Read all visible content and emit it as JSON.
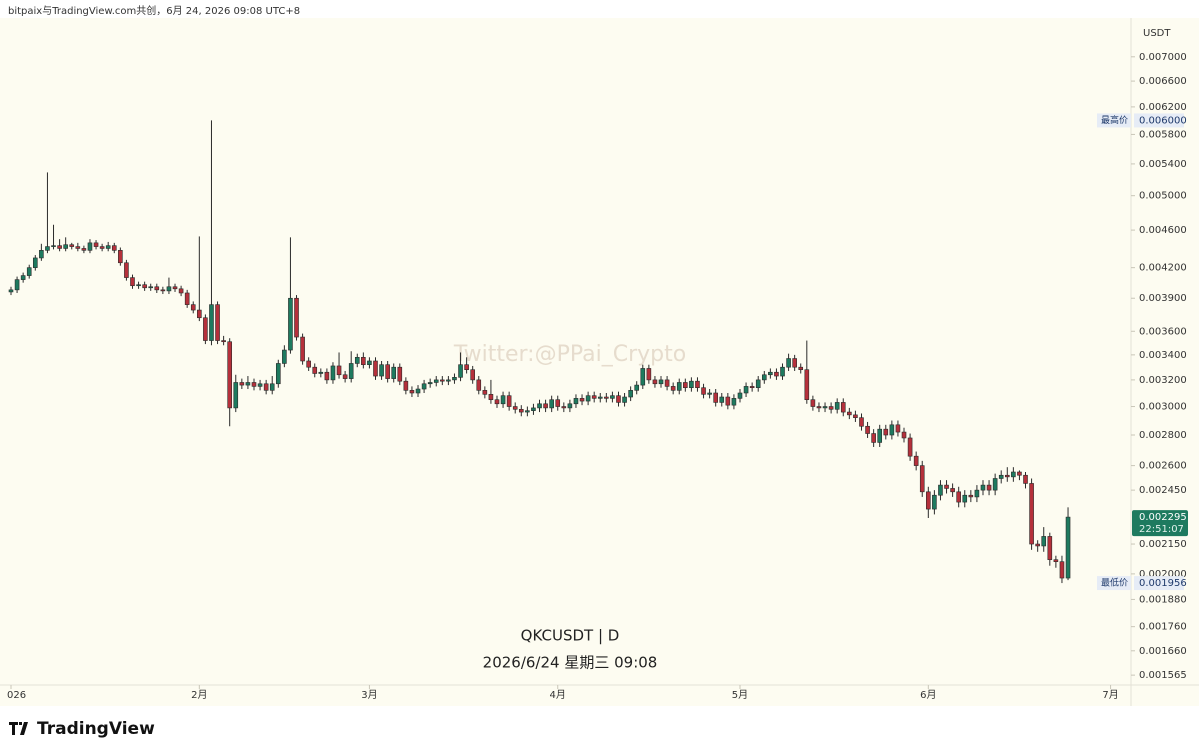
{
  "header": "bitpaix与TradingView.com共创，6月 24, 2026 09:08 UTC+8",
  "logo": "TradingView",
  "chart_data": {
    "type": "candlestick",
    "currency": "USDT",
    "symbol_label": "QKCUSDT | D",
    "date_label": "2026/6/24 星期三 09:08",
    "watermark": "Twitter:@PPai_Crypto",
    "log_scale": true,
    "grid": false,
    "up_color": "#1e7a5f",
    "down_color": "#b5303b",
    "ylim": [
      0.001528,
      0.00769
    ],
    "yticks": [
      {
        "value": 0.007,
        "label": "0.007000"
      },
      {
        "value": 0.0066,
        "label": "0.006600"
      },
      {
        "value": 0.0062,
        "label": "0.006200"
      },
      {
        "value": 0.0058,
        "label": "0.005800"
      },
      {
        "value": 0.0054,
        "label": "0.005400"
      },
      {
        "value": 0.005,
        "label": "0.005000"
      },
      {
        "value": 0.0046,
        "label": "0.004600"
      },
      {
        "value": 0.0042,
        "label": "0.004200"
      },
      {
        "value": 0.0039,
        "label": "0.003900"
      },
      {
        "value": 0.0036,
        "label": "0.003600"
      },
      {
        "value": 0.0034,
        "label": "0.003400"
      },
      {
        "value": 0.0032,
        "label": "0.003200"
      },
      {
        "value": 0.003,
        "label": "0.003000"
      },
      {
        "value": 0.0028,
        "label": "0.002800"
      },
      {
        "value": 0.0026,
        "label": "0.002600"
      },
      {
        "value": 0.00245,
        "label": "0.002450"
      },
      {
        "value": 0.00215,
        "label": "0.002150"
      },
      {
        "value": 0.002,
        "label": "0.002000"
      },
      {
        "value": 0.00188,
        "label": "0.001880"
      },
      {
        "value": 0.00176,
        "label": "0.001760"
      },
      {
        "value": 0.00166,
        "label": "0.001660"
      },
      {
        "value": 0.001565,
        "label": "0.001565"
      }
    ],
    "xlim": [
      -1.81,
      184.2
    ],
    "xticks": [
      {
        "value": 0,
        "label": "026"
      },
      {
        "value": 31,
        "label": "2月"
      },
      {
        "value": 59,
        "label": "3月"
      },
      {
        "value": 90,
        "label": "4月"
      },
      {
        "value": 120,
        "label": "5月"
      },
      {
        "value": 151,
        "label": "6月"
      },
      {
        "value": 181,
        "label": "7月"
      }
    ],
    "high_marker": {
      "label": "最高价",
      "value": 0.006,
      "value_label": "0.006000"
    },
    "low_marker": {
      "label": "最低价",
      "value": 0.001956,
      "value_label": "0.001956"
    },
    "last_price": {
      "value": 0.002295,
      "label": "0.002295",
      "countdown": "22:51:07"
    },
    "open": [
      0.00396,
      0.00398,
      0.00408,
      0.00412,
      0.0042,
      0.0043,
      0.00438,
      0.00442,
      0.00443,
      0.0044,
      0.00444,
      0.00442,
      0.0044,
      0.00438,
      0.00446,
      0.00442,
      0.0044,
      0.00443,
      0.00438,
      0.00425,
      0.0041,
      0.00402,
      0.00403,
      0.004,
      0.00401,
      0.00398,
      0.00397,
      0.00401,
      0.00399,
      0.00395,
      0.00384,
      0.00379,
      0.00372,
      0.00352,
      0.00384,
      0.00352,
      0.00351,
      0.00299,
      0.00318,
      0.00316,
      0.00318,
      0.00315,
      0.00317,
      0.00312,
      0.00317,
      0.00333,
      0.00344,
      0.0039,
      0.00355,
      0.00335,
      0.0033,
      0.00325,
      0.00326,
      0.0032,
      0.00331,
      0.00324,
      0.00321,
      0.00333,
      0.00338,
      0.00332,
      0.00335,
      0.00323,
      0.00332,
      0.00321,
      0.0033,
      0.00319,
      0.00312,
      0.0031,
      0.00313,
      0.00317,
      0.00318,
      0.0032,
      0.00319,
      0.0032,
      0.00322,
      0.00332,
      0.00328,
      0.0032,
      0.00312,
      0.00309,
      0.00305,
      0.00302,
      0.00308,
      0.003,
      0.00298,
      0.00296,
      0.00297,
      0.00299,
      0.00302,
      0.00299,
      0.00305,
      0.003,
      0.00299,
      0.00302,
      0.00306,
      0.00304,
      0.00308,
      0.00306,
      0.00307,
      0.00306,
      0.00308,
      0.00303,
      0.00307,
      0.00312,
      0.00316,
      0.00329,
      0.0032,
      0.00317,
      0.0032,
      0.00315,
      0.00312,
      0.00318,
      0.00314,
      0.00319,
      0.00314,
      0.00309,
      0.0031,
      0.00303,
      0.00307,
      0.00301,
      0.00306,
      0.0031,
      0.00315,
      0.00314,
      0.0032,
      0.00324,
      0.00326,
      0.00323,
      0.0033,
      0.00337,
      0.0033,
      0.00328,
      0.00305,
      0.003,
      0.00299,
      0.003,
      0.00298,
      0.00303,
      0.00296,
      0.00294,
      0.00292,
      0.00286,
      0.00281,
      0.00275,
      0.00284,
      0.0028,
      0.00287,
      0.00282,
      0.00278,
      0.00266,
      0.0026,
      0.00244,
      0.00234,
      0.00242,
      0.00248,
      0.00246,
      0.00244,
      0.00238,
      0.00242,
      0.00241,
      0.00245,
      0.00248,
      0.00245,
      0.00252,
      0.00254,
      0.00253,
      0.00256,
      0.00254,
      0.00249,
      0.00215,
      0.00214,
      0.00219,
      0.00207,
      0.00206,
      0.00198
    ],
    "high": [
      0.00401,
      0.00411,
      0.00415,
      0.00423,
      0.00433,
      0.00445,
      0.00529,
      0.00466,
      0.0045,
      0.00452,
      0.00446,
      0.00446,
      0.00443,
      0.0045,
      0.00449,
      0.00445,
      0.00447,
      0.00446,
      0.00441,
      0.00428,
      0.00413,
      0.00406,
      0.00406,
      0.00404,
      0.00404,
      0.00401,
      0.0041,
      0.00404,
      0.00402,
      0.00398,
      0.00387,
      0.00453,
      0.00375,
      0.006,
      0.00387,
      0.00356,
      0.00354,
      0.00324,
      0.00321,
      0.00323,
      0.00321,
      0.0032,
      0.0032,
      0.00323,
      0.00336,
      0.00348,
      0.00452,
      0.00393,
      0.00358,
      0.00338,
      0.00333,
      0.00329,
      0.00329,
      0.00334,
      0.00342,
      0.00327,
      0.00343,
      0.00341,
      0.00342,
      0.00338,
      0.00338,
      0.00335,
      0.00335,
      0.00333,
      0.00333,
      0.00322,
      0.00315,
      0.00316,
      0.0032,
      0.00321,
      0.00323,
      0.00323,
      0.00323,
      0.00325,
      0.00342,
      0.00338,
      0.00331,
      0.00323,
      0.00315,
      0.0032,
      0.00308,
      0.00311,
      0.00311,
      0.00303,
      0.00301,
      0.003,
      0.00302,
      0.00305,
      0.00305,
      0.00308,
      0.00308,
      0.00303,
      0.00305,
      0.00309,
      0.00309,
      0.00311,
      0.00311,
      0.0031,
      0.0031,
      0.00311,
      0.00311,
      0.0031,
      0.00315,
      0.00319,
      0.00332,
      0.00332,
      0.00323,
      0.00323,
      0.00323,
      0.00318,
      0.00321,
      0.00321,
      0.00322,
      0.00322,
      0.00317,
      0.00313,
      0.00313,
      0.0031,
      0.0031,
      0.00309,
      0.00313,
      0.00318,
      0.00318,
      0.00323,
      0.00327,
      0.00329,
      0.00329,
      0.00333,
      0.00341,
      0.0034,
      0.00333,
      0.00352,
      0.00308,
      0.00303,
      0.00303,
      0.00303,
      0.00306,
      0.00306,
      0.00299,
      0.00297,
      0.00295,
      0.00289,
      0.00284,
      0.00287,
      0.00287,
      0.0029,
      0.0029,
      0.00285,
      0.00281,
      0.00269,
      0.00263,
      0.00247,
      0.00245,
      0.00251,
      0.00251,
      0.00249,
      0.00247,
      0.00245,
      0.00245,
      0.00248,
      0.00251,
      0.00251,
      0.00255,
      0.00257,
      0.00259,
      0.00259,
      0.00257,
      0.00256,
      0.00252,
      0.00217,
      0.00224,
      0.00221,
      0.00209,
      0.00209,
      0.00235
    ],
    "low": [
      0.00393,
      0.00395,
      0.00405,
      0.00409,
      0.00417,
      0.00427,
      0.00435,
      0.00439,
      0.00437,
      0.00437,
      0.00439,
      0.00437,
      0.00435,
      0.00435,
      0.00439,
      0.00437,
      0.00437,
      0.00435,
      0.00422,
      0.00407,
      0.00399,
      0.00399,
      0.00397,
      0.00397,
      0.00395,
      0.00394,
      0.00394,
      0.00396,
      0.00392,
      0.00381,
      0.00376,
      0.00369,
      0.00349,
      0.00348,
      0.00349,
      0.00348,
      0.00286,
      0.00296,
      0.00313,
      0.00313,
      0.00312,
      0.00312,
      0.00309,
      0.00309,
      0.00314,
      0.0033,
      0.00341,
      0.00352,
      0.00332,
      0.00327,
      0.00322,
      0.00322,
      0.00317,
      0.00317,
      0.00321,
      0.00318,
      0.00318,
      0.0033,
      0.00329,
      0.00329,
      0.0032,
      0.0032,
      0.00318,
      0.00318,
      0.00316,
      0.00309,
      0.00307,
      0.00307,
      0.0031,
      0.00314,
      0.00315,
      0.00316,
      0.00316,
      0.00317,
      0.00319,
      0.00325,
      0.00317,
      0.00309,
      0.00306,
      0.00302,
      0.00299,
      0.00299,
      0.00297,
      0.00295,
      0.00293,
      0.00293,
      0.00294,
      0.00296,
      0.00296,
      0.00296,
      0.00297,
      0.00296,
      0.00296,
      0.00299,
      0.00301,
      0.00301,
      0.00303,
      0.00303,
      0.00303,
      0.00303,
      0.003,
      0.003,
      0.00304,
      0.00309,
      0.00313,
      0.00317,
      0.00314,
      0.00314,
      0.00312,
      0.00309,
      0.00309,
      0.00311,
      0.00311,
      0.00311,
      0.00306,
      0.00306,
      0.003,
      0.003,
      0.00298,
      0.00298,
      0.00303,
      0.00307,
      0.00311,
      0.00311,
      0.00317,
      0.00321,
      0.0032,
      0.0032,
      0.00327,
      0.00327,
      0.00325,
      0.00302,
      0.00297,
      0.00296,
      0.00296,
      0.00295,
      0.00295,
      0.00293,
      0.00291,
      0.00289,
      0.00283,
      0.00278,
      0.00272,
      0.00272,
      0.00277,
      0.00277,
      0.00279,
      0.00275,
      0.00263,
      0.00257,
      0.00241,
      0.00229,
      0.00231,
      0.00239,
      0.00243,
      0.00241,
      0.00235,
      0.00235,
      0.00238,
      0.00238,
      0.00242,
      0.00242,
      0.00242,
      0.00249,
      0.0025,
      0.0025,
      0.00251,
      0.00246,
      0.00212,
      0.00211,
      0.00211,
      0.00204,
      0.00203,
      0.001956,
      0.00197
    ],
    "close": [
      0.00398,
      0.00408,
      0.00412,
      0.0042,
      0.0043,
      0.00438,
      0.00442,
      0.00443,
      0.0044,
      0.00444,
      0.00442,
      0.0044,
      0.00438,
      0.00446,
      0.00442,
      0.0044,
      0.00443,
      0.00438,
      0.00425,
      0.0041,
      0.00402,
      0.00403,
      0.004,
      0.00401,
      0.00398,
      0.00397,
      0.00401,
      0.00399,
      0.00395,
      0.00384,
      0.00379,
      0.00372,
      0.00352,
      0.00384,
      0.00352,
      0.00351,
      0.00299,
      0.00318,
      0.00316,
      0.00318,
      0.00315,
      0.00317,
      0.00312,
      0.00317,
      0.00333,
      0.00344,
      0.0039,
      0.00355,
      0.00335,
      0.0033,
      0.00325,
      0.00326,
      0.0032,
      0.00331,
      0.00324,
      0.00321,
      0.00333,
      0.00338,
      0.00332,
      0.00335,
      0.00323,
      0.00332,
      0.00321,
      0.0033,
      0.00319,
      0.00312,
      0.0031,
      0.00313,
      0.00317,
      0.00318,
      0.0032,
      0.00319,
      0.0032,
      0.00322,
      0.00332,
      0.00328,
      0.0032,
      0.00312,
      0.00309,
      0.00305,
      0.00302,
      0.00308,
      0.003,
      0.00298,
      0.00296,
      0.00297,
      0.00299,
      0.00302,
      0.00299,
      0.00305,
      0.003,
      0.00299,
      0.00302,
      0.00306,
      0.00304,
      0.00308,
      0.00306,
      0.00307,
      0.00306,
      0.00308,
      0.00303,
      0.00307,
      0.00312,
      0.00316,
      0.00329,
      0.0032,
      0.00317,
      0.0032,
      0.00315,
      0.00312,
      0.00318,
      0.00314,
      0.00319,
      0.00314,
      0.00309,
      0.0031,
      0.00303,
      0.00307,
      0.00301,
      0.00306,
      0.0031,
      0.00315,
      0.00314,
      0.0032,
      0.00324,
      0.00326,
      0.00323,
      0.0033,
      0.00337,
      0.0033,
      0.00328,
      0.00305,
      0.003,
      0.00299,
      0.003,
      0.00298,
      0.00303,
      0.00296,
      0.00294,
      0.00292,
      0.00286,
      0.00281,
      0.00275,
      0.00284,
      0.0028,
      0.00287,
      0.00282,
      0.00278,
      0.00266,
      0.0026,
      0.00244,
      0.00234,
      0.00242,
      0.00248,
      0.00246,
      0.00244,
      0.00238,
      0.00242,
      0.00241,
      0.00245,
      0.00248,
      0.00245,
      0.00252,
      0.00254,
      0.00253,
      0.00256,
      0.00254,
      0.00249,
      0.00215,
      0.00214,
      0.00219,
      0.00207,
      0.00206,
      0.00198,
      0.002295
    ]
  }
}
